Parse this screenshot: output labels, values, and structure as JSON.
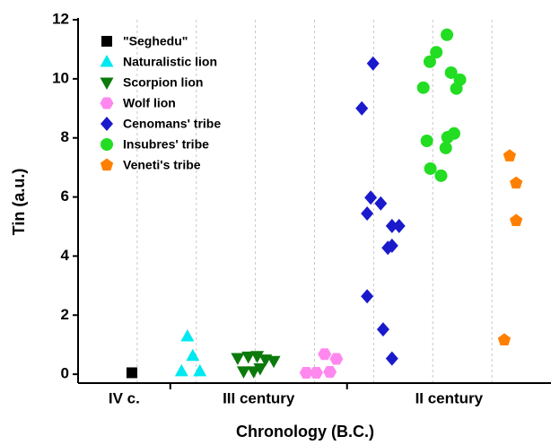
{
  "chart_data": {
    "type": "scatter",
    "xlabel": "Chronology (B.C.)",
    "ylabel": "Tin (a.u.)",
    "xlim": [
      0,
      8
    ],
    "ylim": [
      -0.3,
      12
    ],
    "xticks": [
      1,
      2,
      3,
      4,
      5,
      6,
      7
    ],
    "yticks": [
      0,
      2,
      4,
      6,
      8,
      10,
      12
    ],
    "grid": true,
    "groups": [
      "IV c.",
      "III century",
      "II century"
    ],
    "group_dividers": [
      1.56,
      4.55
    ],
    "legend": "upper left",
    "series": [
      {
        "name": "\"Seghedu\"",
        "color": "#000000",
        "marker": "square",
        "x": [
          0.91
        ],
        "y": [
          0.05
        ]
      },
      {
        "name": "Naturalistic lion",
        "color": "#00e8f0",
        "marker": "triangle-up",
        "x": [
          1.85,
          1.94,
          1.75,
          2.06
        ],
        "y": [
          1.28,
          0.62,
          0.1,
          0.1
        ]
      },
      {
        "name": "Scorpion lion",
        "color": "#0b7a0b",
        "marker": "triangle-down",
        "x": [
          2.7,
          2.88,
          3.03,
          3.17,
          3.31,
          2.8,
          2.97,
          3.08
        ],
        "y": [
          0.55,
          0.6,
          0.62,
          0.5,
          0.45,
          0.1,
          0.1,
          0.2
        ]
      },
      {
        "name": "Wolf lion",
        "color": "#ff88ee",
        "marker": "hexagon",
        "x": [
          3.86,
          4.03,
          4.17,
          4.26,
          4.37
        ],
        "y": [
          0.05,
          0.05,
          0.68,
          0.08,
          0.52
        ]
      },
      {
        "name": "Cenomans' tribe",
        "color": "#1a1acc",
        "marker": "diamond",
        "x": [
          4.99,
          4.8,
          4.95,
          5.12,
          4.89,
          5.31,
          5.43,
          5.24,
          5.31,
          4.89,
          5.16,
          5.31
        ],
        "y": [
          10.52,
          9.0,
          5.98,
          5.78,
          5.44,
          5.02,
          5.02,
          4.28,
          4.35,
          2.64,
          1.52,
          0.53
        ]
      },
      {
        "name": "Insubres' tribe",
        "color": "#22dd22",
        "marker": "circle",
        "x": [
          6.24,
          6.06,
          5.95,
          6.31,
          6.46,
          6.4,
          5.84,
          5.9,
          6.25,
          6.36,
          6.22,
          5.96,
          6.14
        ],
        "y": [
          11.49,
          10.9,
          10.58,
          10.21,
          9.97,
          9.67,
          9.7,
          7.9,
          8.02,
          8.15,
          7.66,
          6.96,
          6.72
        ]
      },
      {
        "name": "Veneti's tribe",
        "color": "#ff8000",
        "marker": "pentagon",
        "x": [
          7.3,
          7.41,
          7.41,
          7.21
        ],
        "y": [
          7.39,
          6.47,
          5.2,
          1.16
        ]
      }
    ]
  }
}
